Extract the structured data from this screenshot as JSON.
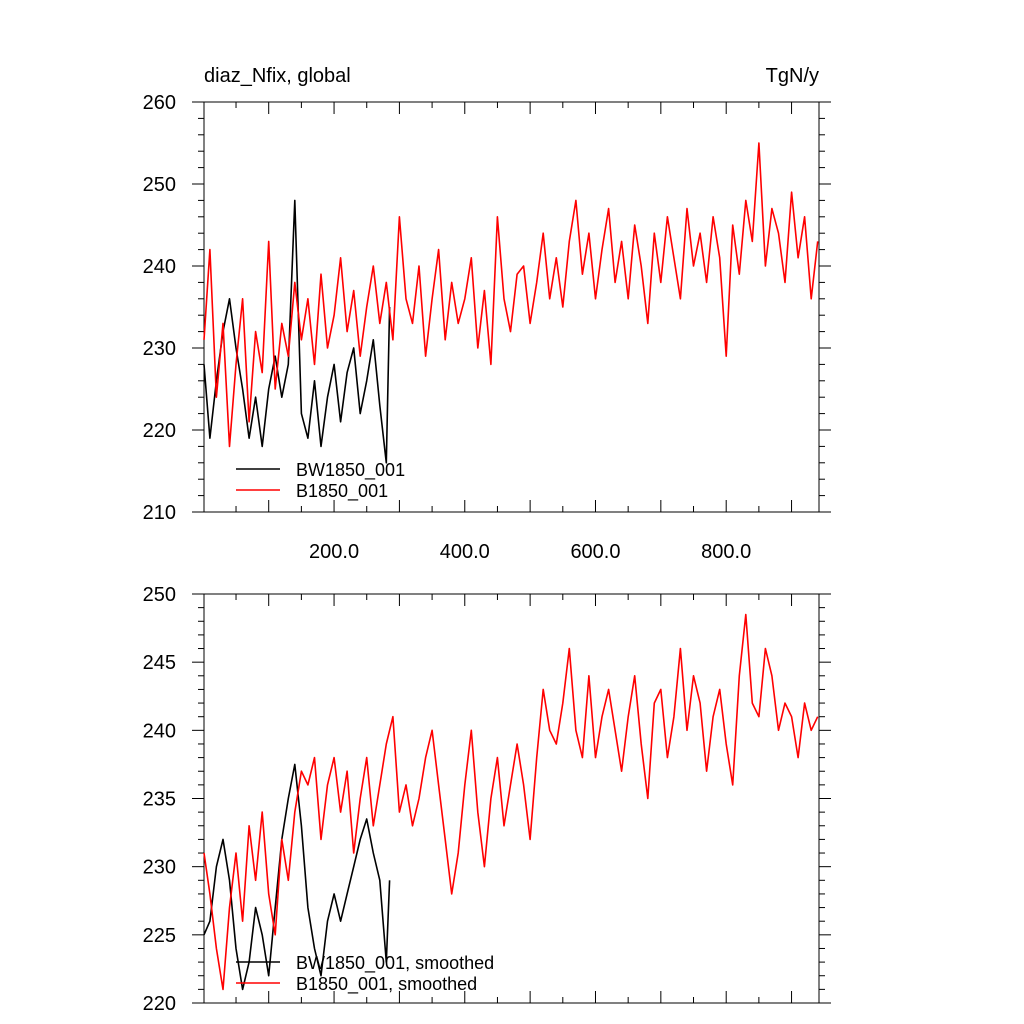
{
  "chart_data": [
    {
      "type": "line",
      "title_left": "diaz_Nfix, global",
      "title_right": "TgN/y",
      "xlim": [
        1,
        942
      ],
      "ylim": [
        210,
        260
      ],
      "x_ticks": [
        200,
        400,
        600,
        800
      ],
      "x_tick_labels": [
        "200.0",
        "400.0",
        "600.0",
        "800.0"
      ],
      "y_ticks": [
        210,
        220,
        230,
        240,
        250,
        260
      ],
      "y_tick_labels": [
        "210",
        "220",
        "230",
        "240",
        "250",
        "260"
      ],
      "legend_position": "bottom-left",
      "series": [
        {
          "name": "BW1850_001",
          "color": "#000000",
          "x": [
            1,
            10,
            20,
            30,
            40,
            50,
            60,
            70,
            80,
            90,
            100,
            110,
            120,
            130,
            140,
            150,
            160,
            170,
            180,
            190,
            200,
            210,
            220,
            230,
            240,
            250,
            260,
            270,
            280,
            285
          ],
          "y": [
            228,
            219,
            226,
            232,
            236,
            230,
            225,
            219,
            224,
            218,
            225,
            229,
            224,
            228,
            248,
            222,
            219,
            226,
            218,
            224,
            228,
            221,
            227,
            230,
            222,
            226,
            231,
            223,
            216,
            235
          ]
        },
        {
          "name": "B1850_001",
          "color": "#ff0000",
          "x": [
            1,
            10,
            20,
            30,
            40,
            50,
            60,
            70,
            80,
            90,
            100,
            110,
            120,
            130,
            140,
            150,
            160,
            170,
            180,
            190,
            200,
            210,
            220,
            230,
            240,
            250,
            260,
            270,
            280,
            290,
            300,
            310,
            320,
            330,
            340,
            350,
            360,
            370,
            380,
            390,
            400,
            410,
            420,
            430,
            440,
            450,
            460,
            470,
            480,
            490,
            500,
            510,
            520,
            530,
            540,
            550,
            560,
            570,
            580,
            590,
            600,
            610,
            620,
            630,
            640,
            650,
            660,
            670,
            680,
            690,
            700,
            710,
            720,
            730,
            740,
            750,
            760,
            770,
            780,
            790,
            800,
            810,
            820,
            830,
            840,
            850,
            860,
            870,
            880,
            890,
            900,
            910,
            920,
            930,
            940
          ],
          "y": [
            231,
            242,
            224,
            233,
            218,
            228,
            236,
            221,
            232,
            227,
            243,
            225,
            233,
            229,
            238,
            231,
            236,
            228,
            239,
            230,
            234,
            241,
            232,
            237,
            229,
            235,
            240,
            233,
            238,
            231,
            246,
            236,
            233,
            240,
            229,
            236,
            242,
            231,
            238,
            233,
            236,
            241,
            230,
            237,
            228,
            246,
            236,
            232,
            239,
            240,
            233,
            238,
            244,
            236,
            241,
            235,
            243,
            248,
            239,
            244,
            236,
            242,
            247,
            238,
            243,
            236,
            245,
            240,
            233,
            244,
            238,
            246,
            241,
            236,
            247,
            240,
            244,
            238,
            246,
            241,
            229,
            245,
            239,
            248,
            243,
            255,
            240,
            247,
            244,
            238,
            249,
            241,
            246,
            236,
            243
          ]
        }
      ]
    },
    {
      "type": "line",
      "xlim": [
        1,
        942
      ],
      "ylim": [
        220,
        250
      ],
      "y_ticks": [
        220,
        225,
        230,
        235,
        240,
        245,
        250
      ],
      "y_tick_labels": [
        "220",
        "225",
        "230",
        "235",
        "240",
        "245",
        "250"
      ],
      "legend_position": "bottom-left",
      "series": [
        {
          "name": "BW1850_001, smoothed",
          "color": "#000000",
          "x": [
            1,
            10,
            20,
            30,
            40,
            50,
            60,
            70,
            80,
            90,
            100,
            110,
            120,
            130,
            140,
            150,
            160,
            170,
            180,
            190,
            200,
            210,
            220,
            230,
            240,
            250,
            260,
            270,
            280,
            285
          ],
          "y": [
            225,
            226,
            230,
            232,
            229,
            224,
            221,
            223,
            227,
            225,
            222,
            227,
            232,
            235,
            237.5,
            233,
            227,
            224,
            222,
            226,
            228,
            226,
            228,
            230,
            232,
            233.5,
            231,
            229,
            223,
            229
          ]
        },
        {
          "name": "B1850_001, smoothed",
          "color": "#ff0000",
          "x": [
            1,
            10,
            20,
            30,
            40,
            50,
            60,
            70,
            80,
            90,
            100,
            110,
            120,
            130,
            140,
            150,
            160,
            170,
            180,
            190,
            200,
            210,
            220,
            230,
            240,
            250,
            260,
            270,
            280,
            290,
            300,
            310,
            320,
            330,
            340,
            350,
            360,
            370,
            380,
            390,
            400,
            410,
            420,
            430,
            440,
            450,
            460,
            470,
            480,
            490,
            500,
            510,
            520,
            530,
            540,
            550,
            560,
            570,
            580,
            590,
            600,
            610,
            620,
            630,
            640,
            650,
            660,
            670,
            680,
            690,
            700,
            710,
            720,
            730,
            740,
            750,
            760,
            770,
            780,
            790,
            800,
            810,
            820,
            830,
            840,
            850,
            860,
            870,
            880,
            890,
            900,
            910,
            920,
            930,
            940
          ],
          "y": [
            231,
            228,
            224,
            221,
            227,
            231,
            226,
            233,
            229,
            234,
            228,
            225,
            232,
            229,
            234,
            237,
            236,
            238,
            232,
            236,
            238,
            234,
            237,
            231,
            235,
            238,
            233,
            236,
            239,
            241,
            234,
            236,
            233,
            235,
            238,
            240,
            236,
            232,
            228,
            231,
            236,
            240,
            234,
            230,
            235,
            238,
            233,
            236,
            239,
            236,
            232,
            238,
            243,
            240,
            239,
            242,
            246,
            240,
            238,
            244,
            238,
            241,
            243,
            240,
            237,
            241,
            244,
            239,
            235,
            242,
            243,
            238,
            241,
            246,
            240,
            244,
            242,
            237,
            241,
            243,
            239,
            236,
            244,
            248.5,
            242,
            241,
            246,
            244,
            240,
            242,
            241,
            238,
            242,
            240,
            241
          ]
        }
      ]
    }
  ]
}
